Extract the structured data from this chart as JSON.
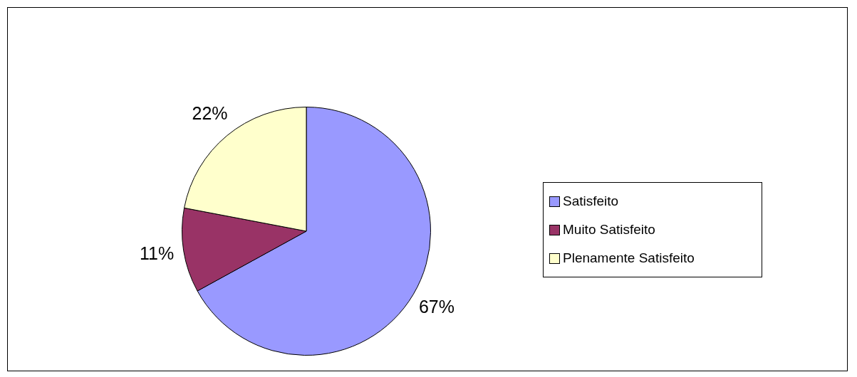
{
  "chart_data": {
    "type": "pie",
    "categories": [
      "Satisfeito",
      "Muito Satisfeito",
      "Plenamente Satisfeito"
    ],
    "values": [
      67,
      11,
      22
    ],
    "colors": [
      "#9999ff",
      "#993366",
      "#ffffcc"
    ],
    "value_labels": [
      "67%",
      "11%",
      "22%"
    ],
    "legend": "right"
  }
}
